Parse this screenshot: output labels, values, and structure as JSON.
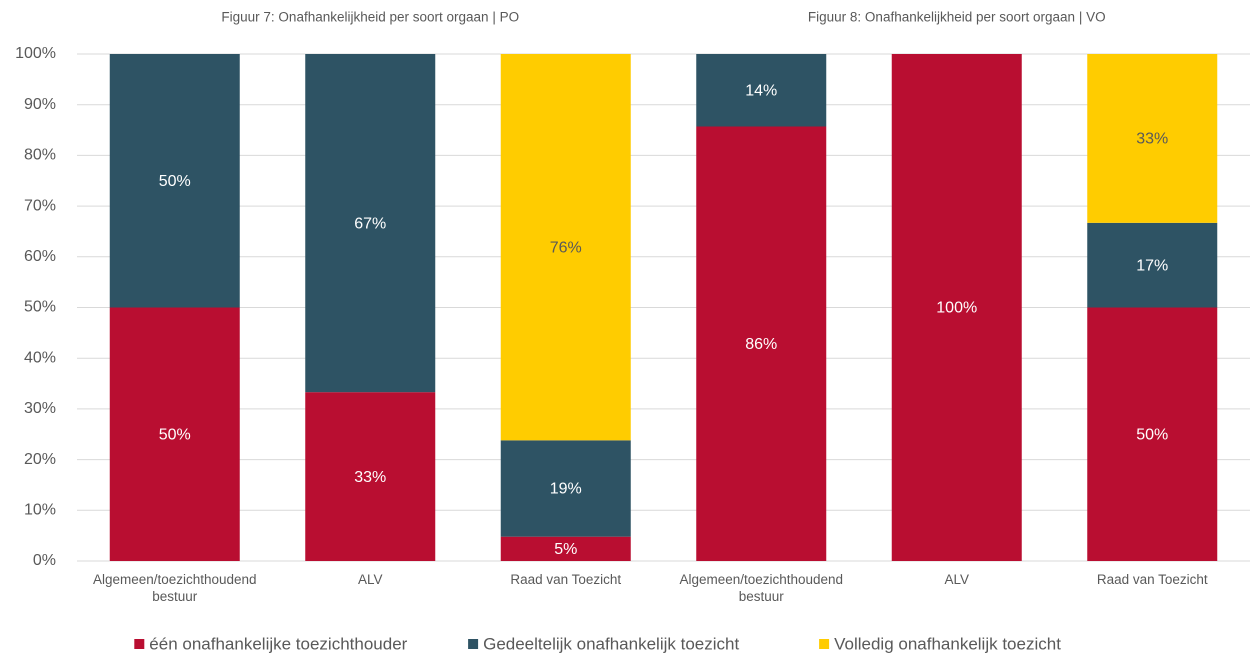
{
  "chart_data": {
    "type": "stacked_bar",
    "titles": [
      "Figuur 7: Onafhankelijkheid per soort orgaan | PO",
      "Figuur 8: Onafhankelijkheid per soort orgaan | VO"
    ],
    "categories": [
      "Algemeen/toezichthoudend bestuur",
      "ALV",
      "Raad van Toezicht",
      "Algemeen/toezichthoudend bestuur",
      "ALV",
      "Raad van Toezicht"
    ],
    "series": [
      {
        "name": "één onafhankelijke toezichthouder",
        "color": "#b90e31",
        "values": [
          50,
          33.3,
          4.8,
          85.7,
          100,
          50
        ],
        "value_labels": [
          "50%",
          "33%",
          "5%",
          "86%",
          "100%",
          "50%"
        ]
      },
      {
        "name": "Gedeeltelijk onafhankelijk toezicht",
        "color": "#2e5364",
        "values": [
          50,
          66.7,
          19,
          14.3,
          null,
          16.7
        ],
        "value_labels": [
          "50%",
          "67%",
          "19%",
          "14%",
          null,
          "17%"
        ]
      },
      {
        "name": "Volledig onafhankelijk toezicht",
        "color": "#ffcc00",
        "values": [
          null,
          null,
          76.2,
          null,
          null,
          33.3
        ],
        "value_labels": [
          null,
          null,
          "76%",
          null,
          null,
          "33%"
        ]
      }
    ],
    "ylim": [
      0,
      100
    ],
    "yticks": [
      {
        "value": 0,
        "label": "0%"
      },
      {
        "value": 10,
        "label": "10%"
      },
      {
        "value": 20,
        "label": "20%"
      },
      {
        "value": 30,
        "label": "30%"
      },
      {
        "value": 40,
        "label": "40%"
      },
      {
        "value": 50,
        "label": "50%"
      },
      {
        "value": 60,
        "label": "60%"
      },
      {
        "value": 70,
        "label": "70%"
      },
      {
        "value": 80,
        "label": "80%"
      },
      {
        "value": 90,
        "label": "90%"
      },
      {
        "value": 100,
        "label": "100%"
      }
    ],
    "grid": true,
    "legend": "bottom"
  }
}
